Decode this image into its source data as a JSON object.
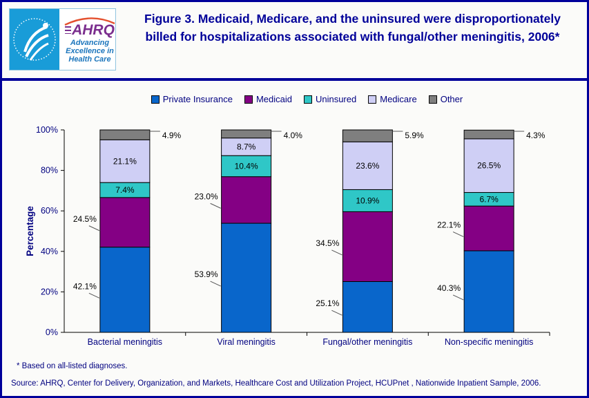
{
  "header": {
    "logo": {
      "brand": "AHRQ",
      "tagline": "Advancing Excellence in Health Care"
    },
    "title": "Figure 3. Medicaid, Medicare, and the uninsured were disproportionately billed for hospitalizations associated with fungal/other meningitis, 2006*"
  },
  "chart_data": {
    "type": "bar",
    "stacked": true,
    "title": "Figure 3. Medicaid, Medicare, and the uninsured were disproportionately billed for hospitalizations associated with fungal/other meningitis, 2006*",
    "categories": [
      "Bacterial meningitis",
      "Viral meningitis",
      "Fungal/other meningitis",
      "Non-specific meningitis"
    ],
    "series": [
      {
        "name": "Private Insurance",
        "color": "#0966CB",
        "values": [
          42.1,
          53.9,
          25.1,
          40.3
        ],
        "label_placement": "outside-left"
      },
      {
        "name": "Medicaid",
        "color": "#840084",
        "values": [
          24.5,
          23.0,
          34.5,
          22.1
        ],
        "label_placement": "outside-left"
      },
      {
        "name": "Uninsured",
        "color": "#2FC7C7",
        "values": [
          7.4,
          10.4,
          10.9,
          6.7
        ],
        "label_placement": "inside"
      },
      {
        "name": "Medicare",
        "color": "#CFCFF5",
        "values": [
          21.1,
          8.7,
          23.6,
          26.5
        ],
        "label_placement": "inside"
      },
      {
        "name": "Other",
        "color": "#7F7F7F",
        "values": [
          4.9,
          4.0,
          5.9,
          4.3
        ],
        "label_placement": "outside-right-top"
      }
    ],
    "xlabel": "",
    "ylabel": "Percentage",
    "ylim": [
      0,
      100
    ],
    "y_tick_step": 20,
    "y_tick_suffix": "%",
    "grid": false,
    "legend_position": "top",
    "label_format": "one-decimal-percent"
  },
  "footnotes": {
    "note": "* Based on all-listed diagnoses.",
    "source": "Source: AHRQ, Center for Delivery, Organization, and Markets, Healthcare Cost and Utilization Project, HCUPnet , Nationwide Inpatient Sample, 2006."
  },
  "colors": {
    "page_border": "#00009A",
    "title_text": "#000099",
    "axis_text": "#000080",
    "data_label_text": "#000000",
    "axis_line": "#000000",
    "leader_line": "#555555"
  }
}
